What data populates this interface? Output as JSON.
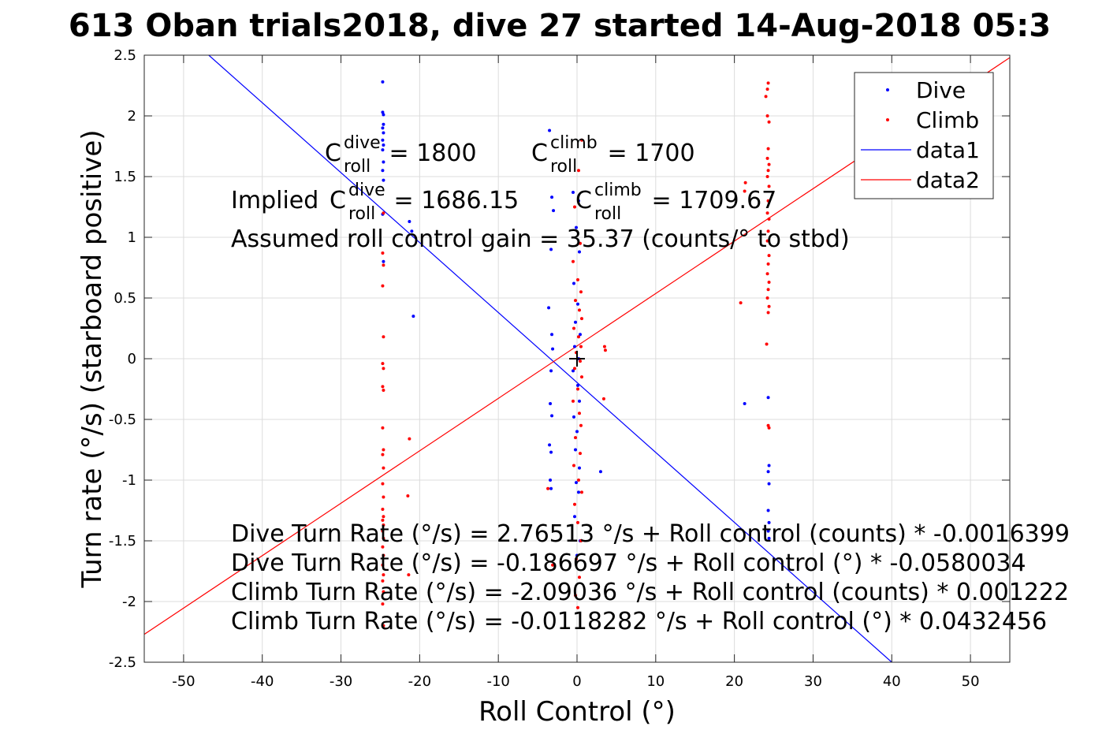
{
  "chart_data": {
    "type": "scatter",
    "title": "613 Oban trials2018, dive 27 started 14-Aug-2018 05:3",
    "xlabel": "Roll Control (°)",
    "ylabel": "Turn rate (°/s) (starboard positive)",
    "xlim": [
      -55,
      55
    ],
    "ylim": [
      -2.5,
      2.5
    ],
    "grid": true,
    "legend_position": "top-right",
    "x_ticks": [
      -50,
      -40,
      -30,
      -20,
      -10,
      0,
      10,
      20,
      30,
      40,
      50
    ],
    "y_ticks": [
      -2.5,
      -2,
      -1.5,
      -1,
      -0.5,
      0,
      0.5,
      1,
      1.5,
      2,
      2.5
    ],
    "legend": [
      {
        "name": "Dive",
        "style": "dot",
        "color": "#0000ff"
      },
      {
        "name": "Climb",
        "style": "dot",
        "color": "#ff0000"
      },
      {
        "name": "data1",
        "style": "line",
        "color": "#0000ff"
      },
      {
        "name": "data2",
        "style": "line",
        "color": "#ff0000"
      }
    ],
    "series": [
      {
        "name": "Dive",
        "color": "#0000ff",
        "points": [
          [
            -24.7,
            2.28
          ],
          [
            -24.7,
            2.03
          ],
          [
            -24.6,
            2.01
          ],
          [
            -24.6,
            1.93
          ],
          [
            -24.7,
            1.9
          ],
          [
            -24.6,
            1.86
          ],
          [
            -24.7,
            1.8
          ],
          [
            -24.6,
            1.76
          ],
          [
            -24.7,
            1.72
          ],
          [
            -24.6,
            1.62
          ],
          [
            -24.7,
            1.55
          ],
          [
            -24.6,
            1.47
          ],
          [
            -24.7,
            1.19
          ],
          [
            -24.6,
            0.8
          ],
          [
            -21.3,
            1.13
          ],
          [
            -21.0,
            1.05
          ],
          [
            -20.8,
            0.35
          ],
          [
            -3.5,
            1.88
          ],
          [
            -3.2,
            1.33
          ],
          [
            -3.0,
            1.22
          ],
          [
            -3.3,
            0.9
          ],
          [
            -3.6,
            0.42
          ],
          [
            -3.2,
            0.2
          ],
          [
            -3.1,
            0.08
          ],
          [
            -3.3,
            -0.1
          ],
          [
            -3.4,
            -0.37
          ],
          [
            -3.2,
            -0.47
          ],
          [
            -3.5,
            -0.71
          ],
          [
            -3.3,
            -0.77
          ],
          [
            -3.4,
            -1.0
          ],
          [
            -3.3,
            -1.07
          ],
          [
            -0.5,
            1.37
          ],
          [
            0.2,
            1.3
          ],
          [
            -0.1,
            1.08
          ],
          [
            0.3,
            0.88
          ],
          [
            -0.4,
            0.62
          ],
          [
            0.1,
            0.45
          ],
          [
            -0.2,
            0.3
          ],
          [
            0.4,
            0.2
          ],
          [
            -0.3,
            0.1
          ],
          [
            0.2,
            0.0
          ],
          [
            -0.5,
            -0.1
          ],
          [
            0.1,
            -0.22
          ],
          [
            0.3,
            -0.35
          ],
          [
            -0.4,
            -0.48
          ],
          [
            0.0,
            -0.6
          ],
          [
            -0.2,
            -0.75
          ],
          [
            0.3,
            -0.9
          ],
          [
            -0.1,
            -1.02
          ],
          [
            0.2,
            -1.1
          ],
          [
            -0.3,
            -1.3
          ],
          [
            0.4,
            -1.5
          ],
          [
            0.0,
            -1.62
          ],
          [
            3.0,
            -0.93
          ],
          [
            21.3,
            -0.37
          ],
          [
            24.3,
            -0.32
          ],
          [
            24.4,
            -0.88
          ],
          [
            24.3,
            -0.93
          ],
          [
            24.4,
            -1.03
          ],
          [
            24.3,
            -1.25
          ],
          [
            24.4,
            -1.35
          ],
          [
            24.3,
            -1.42
          ],
          [
            24.4,
            -1.48
          ]
        ]
      },
      {
        "name": "Climb",
        "color": "#ff0000",
        "points": [
          [
            -24.6,
            1.2
          ],
          [
            -24.7,
            0.87
          ],
          [
            -24.6,
            0.77
          ],
          [
            -24.7,
            0.6
          ],
          [
            -24.6,
            0.18
          ],
          [
            -24.7,
            -0.04
          ],
          [
            -24.6,
            -0.08
          ],
          [
            -24.7,
            -0.23
          ],
          [
            -24.6,
            -0.26
          ],
          [
            -24.7,
            -0.57
          ],
          [
            -24.6,
            -0.75
          ],
          [
            -24.7,
            -0.79
          ],
          [
            -24.6,
            -0.9
          ],
          [
            -24.7,
            -1.03
          ],
          [
            -24.6,
            -1.14
          ],
          [
            -24.7,
            -1.24
          ],
          [
            -24.6,
            -1.3
          ],
          [
            -24.7,
            -1.33
          ],
          [
            -24.6,
            -1.37
          ],
          [
            -24.7,
            -1.42
          ],
          [
            -24.6,
            -1.48
          ],
          [
            -24.7,
            -1.55
          ],
          [
            -24.6,
            -1.62
          ],
          [
            -24.7,
            -1.7
          ],
          [
            -24.6,
            -1.78
          ],
          [
            -24.7,
            -1.83
          ],
          [
            -24.6,
            -1.92
          ],
          [
            -24.7,
            -2.02
          ],
          [
            -24.6,
            -2.2
          ],
          [
            -21.3,
            -0.66
          ],
          [
            -21.5,
            -1.13
          ],
          [
            -21.4,
            -1.78
          ],
          [
            -3.7,
            -1.07
          ],
          [
            -3.1,
            -1.7
          ],
          [
            0.6,
            1.8
          ],
          [
            0.2,
            1.55
          ],
          [
            -0.3,
            1.25
          ],
          [
            0.4,
            0.95
          ],
          [
            -0.5,
            0.8
          ],
          [
            0.1,
            0.65
          ],
          [
            0.5,
            0.55
          ],
          [
            -0.2,
            0.48
          ],
          [
            0.3,
            0.4
          ],
          [
            0.6,
            0.33
          ],
          [
            -0.4,
            0.25
          ],
          [
            0.2,
            0.18
          ],
          [
            0.5,
            0.1
          ],
          [
            -0.1,
            0.05
          ],
          [
            0.4,
            -0.02
          ],
          [
            -0.3,
            -0.08
          ],
          [
            0.6,
            -0.15
          ],
          [
            0.1,
            -0.25
          ],
          [
            -0.5,
            -0.35
          ],
          [
            0.3,
            -0.45
          ],
          [
            0.5,
            -0.55
          ],
          [
            -0.2,
            -0.65
          ],
          [
            0.4,
            -0.78
          ],
          [
            -0.4,
            -0.88
          ],
          [
            0.2,
            -1.0
          ],
          [
            0.6,
            -1.1
          ],
          [
            -0.3,
            -1.2
          ],
          [
            0.1,
            -1.35
          ],
          [
            0.5,
            -1.5
          ],
          [
            -0.1,
            -1.65
          ],
          [
            0.3,
            -1.8
          ],
          [
            -0.2,
            -1.95
          ],
          [
            0.1,
            -2.05
          ],
          [
            3.5,
            0.1
          ],
          [
            3.6,
            0.07
          ],
          [
            3.4,
            -0.33
          ],
          [
            20.8,
            0.46
          ],
          [
            21.4,
            1.45
          ],
          [
            21.3,
            1.38
          ],
          [
            24.3,
            2.27
          ],
          [
            24.2,
            2.22
          ],
          [
            24.0,
            2.16
          ],
          [
            24.2,
            2.0
          ],
          [
            24.4,
            1.95
          ],
          [
            24.3,
            1.73
          ],
          [
            24.2,
            1.65
          ],
          [
            24.4,
            1.6
          ],
          [
            24.3,
            1.55
          ],
          [
            24.2,
            1.5
          ],
          [
            24.4,
            1.42
          ],
          [
            24.3,
            1.3
          ],
          [
            24.2,
            1.2
          ],
          [
            24.4,
            1.15
          ],
          [
            24.3,
            1.05
          ],
          [
            24.2,
            0.97
          ],
          [
            24.4,
            0.85
          ],
          [
            24.3,
            0.78
          ],
          [
            24.2,
            0.7
          ],
          [
            24.4,
            0.63
          ],
          [
            24.3,
            0.57
          ],
          [
            24.2,
            0.5
          ],
          [
            24.4,
            0.43
          ],
          [
            24.3,
            0.38
          ],
          [
            24.1,
            0.12
          ],
          [
            24.3,
            -0.55
          ],
          [
            24.4,
            -0.57
          ]
        ]
      },
      {
        "name": "data1",
        "color": "#0000ff",
        "line": [
          [
            -46.8,
            2.5
          ],
          [
            40.0,
            -2.5
          ]
        ]
      },
      {
        "name": "data2",
        "color": "#ff0000",
        "line": [
          [
            -55.0,
            -2.27
          ],
          [
            55.0,
            2.48
          ]
        ]
      }
    ],
    "center_marker": [
      0,
      0
    ],
    "annotations": {
      "c_dive": {
        "base": "C",
        "sup": "dive",
        "sub": "roll",
        "rest": " = 1800"
      },
      "c_climb": {
        "base": "C",
        "sup": "climb",
        "sub": "roll",
        "rest": " = 1700"
      },
      "implied_prefix": "Implied ",
      "implied_dive": {
        "base": "C",
        "sup": "dive",
        "sub": "roll",
        "rest": " = 1686.15"
      },
      "implied_climb": {
        "base": "C",
        "sup": "climb",
        "sub": "roll",
        "rest": " = 1709.67"
      },
      "gain": "Assumed roll control gain = 35.37 (counts/° to stbd)",
      "equations": [
        "Dive Turn Rate (°/s) = 2.76513 °/s + Roll control (counts) * -0.0016399",
        "Dive Turn Rate (°/s) = -0.186697 °/s + Roll control (°) * -0.0580034",
        "Climb Turn Rate (°/s) = -2.09036 °/s + Roll control (counts) * 0.001222",
        "Climb Turn Rate (°/s) = -0.0118282 °/s + Roll control (°) * 0.0432456"
      ]
    }
  }
}
